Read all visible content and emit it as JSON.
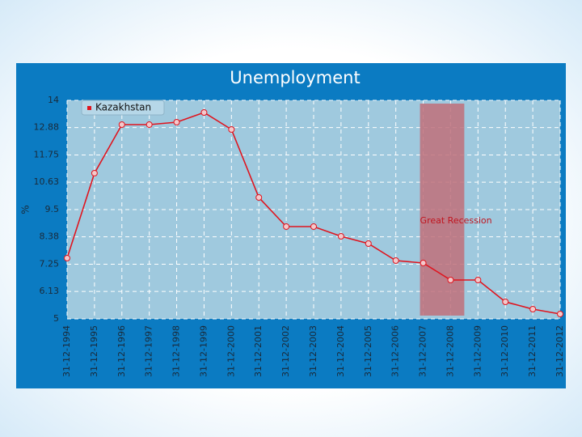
{
  "chart_data": {
    "type": "line",
    "title": "Unemployment",
    "y_label": "%",
    "categories": [
      "31-12-1994",
      "31-12-1995",
      "31-12-1996",
      "31-12-1997",
      "31-12-1998",
      "31-12-1999",
      "31-12-2000",
      "31-12-2001",
      "31-12-2002",
      "31-12-2003",
      "31-12-2004",
      "31-12-2005",
      "31-12-2006",
      "31-12-2007",
      "31-12-2008",
      "31-12-2009",
      "31-12-2010",
      "31-12-2011",
      "31-12-2012"
    ],
    "series": [
      {
        "name": "Kazakhstan",
        "color": "#e0141e",
        "values": [
          7.5,
          11.0,
          13.0,
          13.0,
          13.1,
          13.5,
          12.8,
          10.0,
          8.8,
          8.8,
          8.4,
          8.1,
          7.4,
          7.3,
          6.6,
          6.6,
          5.7,
          5.4,
          5.2
        ]
      }
    ],
    "ylim": [
      5,
      14
    ],
    "yticks": [
      5,
      6.13,
      7.25,
      8.38,
      9.5,
      10.63,
      11.75,
      12.88,
      14
    ],
    "grid": true,
    "legend": "top-left",
    "band": {
      "label": "Great Recession",
      "span": [
        13,
        14.5
      ],
      "color": "#c0707a"
    }
  }
}
